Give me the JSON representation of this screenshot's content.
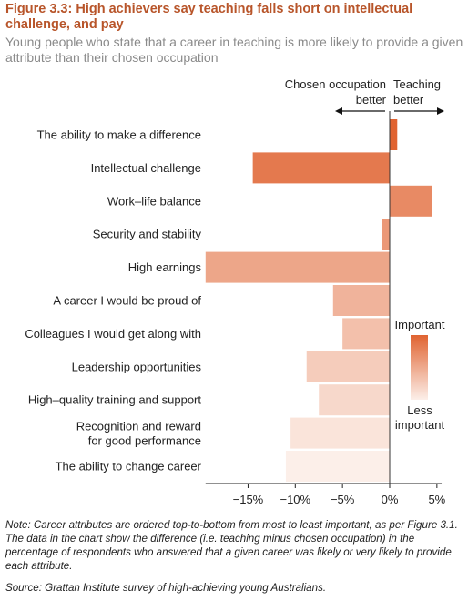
{
  "figure": {
    "title": "Figure 3.3: High achievers say teaching falls short on intellectual challenge, and pay",
    "subtitle": "Young people who state that a career in teaching is more likely to provide a given attribute than their chosen occupation",
    "note": "Note: Career attributes are ordered top-to-bottom from most to least important, as per Figure 3.1. The data in the chart show the difference (i.e. teaching minus chosen occupation) in the percentage of respondents who answered that a given career was likely or very likely to provide each attribute.",
    "source": "Source: Grattan Institute survey of high-achieving young Australians."
  },
  "chart_data": {
    "type": "bar",
    "orientation": "horizontal",
    "categories": [
      "The ability to make a difference",
      "Intellectual challenge",
      "Work–life balance",
      "Security and stability",
      "High earnings",
      "A career I would be proud of",
      "Colleagues I would get along with",
      "Leadership opportunities",
      "High–quality training and support",
      "Recognition and reward for good performance",
      "The ability to change career"
    ],
    "category_lines": [
      [
        "The ability to make a difference"
      ],
      [
        "Intellectual challenge"
      ],
      [
        "Work–life balance"
      ],
      [
        "Security and stability"
      ],
      [
        "High earnings"
      ],
      [
        "A career I would be proud of"
      ],
      [
        "Colleagues I would get along with"
      ],
      [
        "Leadership opportunities"
      ],
      [
        "High–quality training and support"
      ],
      [
        "Recognition and reward",
        "for good performance"
      ],
      [
        "The ability to change career"
      ]
    ],
    "values": [
      0.8,
      -14.5,
      4.5,
      -0.8,
      -19.5,
      -6,
      -5,
      -8.8,
      -7.5,
      -10.5,
      -11
    ],
    "importance_rank": [
      1,
      2,
      3,
      4,
      5,
      6,
      7,
      8,
      9,
      10,
      11
    ],
    "xlim": [
      -19.5,
      5.5
    ],
    "xticks": [
      -15,
      -10,
      -5,
      0,
      5
    ],
    "xtick_labels": [
      "−15%",
      "−10%",
      "−5%",
      "0%",
      "5%"
    ],
    "direction_labels": {
      "left": [
        "Chosen occupation",
        "better"
      ],
      "right": [
        "Teaching",
        "better"
      ]
    },
    "legend": {
      "high_label": "Important",
      "low_label": [
        "Less",
        "important"
      ],
      "placement": "right",
      "color_high": "#e06331",
      "color_low": "#fcefe9"
    },
    "colors": {
      "axis": "#222222",
      "zero_line": "#333333"
    }
  }
}
